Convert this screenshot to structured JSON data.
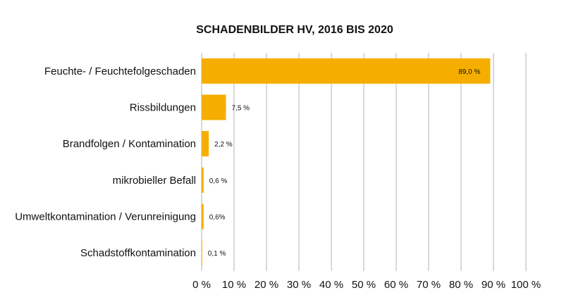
{
  "chart_data": {
    "type": "bar",
    "orientation": "horizontal",
    "title": "SCHADENBILDER HV, 2016 BIS 2020",
    "categories": [
      "Feuchte- / Feuchtefolgeschaden",
      "Rissbildungen",
      "Brandfolgen / Kontamination",
      "mikrobieller Befall",
      "Umweltkontamination / Verunreinigung",
      "Schadstoffkontamination"
    ],
    "values": [
      89.0,
      7.5,
      2.2,
      0.6,
      0.6,
      0.1
    ],
    "data_labels": [
      "89,0 %",
      "7,5 %",
      "2,2 %",
      "0,6 %",
      "0,6%",
      "0,1 %"
    ],
    "xlim": [
      0,
      100
    ],
    "x_ticks": [
      "0 %",
      "10 %",
      "20 %",
      "30 %",
      "40 %",
      "50 %",
      "60 %",
      "70 %",
      "80 %",
      "90 %",
      "100 %"
    ],
    "grid": "vertical",
    "legend": "none",
    "colors": {
      "bar": "#F5AE00",
      "grid": "#B3B3B3",
      "text": "#111111"
    }
  }
}
